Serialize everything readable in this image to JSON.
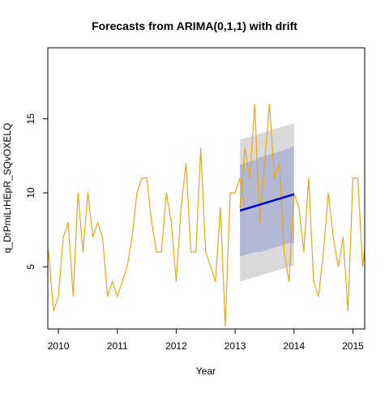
{
  "chart_data": {
    "type": "line",
    "title": "Forecasts from ARIMA(0,1,1) with drift",
    "xlabel": "Year",
    "ylabel": "q_DrPmiLrHEpR_SQvOXELQ",
    "xlim": [
      2009.82,
      2015.2
    ],
    "ylim": [
      0.8,
      19.8
    ],
    "x_ticks": [
      2010,
      2011,
      2012,
      2013,
      2014,
      2015
    ],
    "x_tick_labels": [
      "2010",
      "2011",
      "2012",
      "2013",
      "2014",
      "2015"
    ],
    "y_ticks": [
      5,
      10,
      15
    ],
    "y_tick_labels": [
      "5",
      "10",
      "15"
    ],
    "grid": false,
    "legend": "none",
    "colors": {
      "observed": "#E6A817",
      "forecast": "#0000CC",
      "band80": "#B3B8D4",
      "band95": "#D9D9DC",
      "axis": "#000000"
    },
    "series": [
      {
        "name": "",
        "role": "observed",
        "x_start": 2009.75,
        "step": 0.08333,
        "values": [
          7,
          6,
          2,
          3,
          7,
          8,
          3,
          10,
          6,
          10,
          7,
          8,
          7,
          3,
          4,
          3,
          4,
          5,
          7,
          10,
          11,
          11,
          8,
          6,
          6,
          10,
          8,
          4,
          9,
          12,
          6,
          6,
          13,
          6,
          5,
          4,
          9,
          1,
          10,
          10,
          11,
          9
        ]
      },
      {
        "name": "",
        "role": "forecast",
        "x_start": 2013.083,
        "step": 0.08333,
        "values": [
          8.8,
          8.9,
          9.0,
          9.1,
          9.2,
          9.3,
          9.4,
          9.5,
          9.6,
          9.7,
          9.8,
          9.9
        ],
        "lo80": [
          5.7,
          5.8,
          5.9,
          6.0,
          6.0,
          6.1,
          6.2,
          6.3,
          6.4,
          6.5,
          6.6,
          6.6
        ],
        "hi80": [
          11.9,
          12.0,
          12.1,
          12.2,
          12.4,
          12.5,
          12.6,
          12.7,
          12.8,
          12.9,
          13.0,
          13.2
        ],
        "lo95": [
          4.0,
          4.1,
          4.2,
          4.3,
          4.4,
          4.5,
          4.6,
          4.7,
          4.8,
          4.9,
          5.0,
          5.1
        ],
        "hi95": [
          13.6,
          13.7,
          13.8,
          13.9,
          14.0,
          14.1,
          14.2,
          14.3,
          14.4,
          14.5,
          14.6,
          14.7
        ]
      },
      {
        "name": "",
        "role": "actual-overlay",
        "x_start": 2013.083,
        "step": 0.08333,
        "values": [
          9,
          13,
          11,
          16,
          8,
          12,
          16,
          11,
          12,
          6,
          4,
          10,
          9,
          6,
          11,
          4,
          3,
          6,
          10,
          7,
          5,
          7,
          2,
          11,
          11,
          5,
          8
        ]
      }
    ]
  }
}
